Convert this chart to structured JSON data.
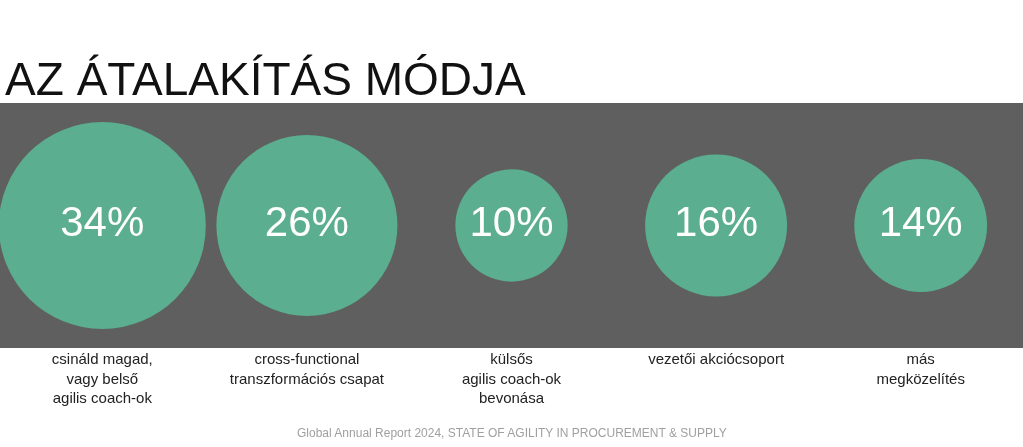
{
  "chart_data": {
    "type": "other",
    "title": "AZ ÁTALAKÍTÁS MÓDJA",
    "categories": [
      "csináld magad,\nvagy belső\nagilis coach-ok",
      "cross-functional\ntranszformációs csapat",
      "külsős\nagilis coach-ok\nbevonása",
      "vezetői akciócsoport",
      "más\nmegközelítés"
    ],
    "values": [
      34,
      26,
      10,
      16,
      14
    ],
    "value_labels": [
      "34%",
      "26%",
      "10%",
      "16%",
      "14%"
    ],
    "color": "#5bae8f",
    "annotations": [
      "Global Annual Report 2024, STATE OF AGILITY IN PROCUREMENT & SUPPLY"
    ],
    "legend": false
  }
}
